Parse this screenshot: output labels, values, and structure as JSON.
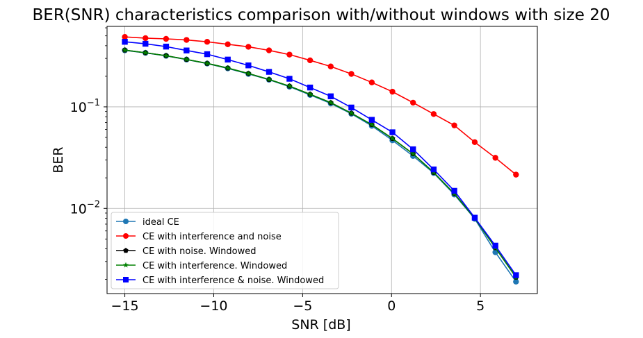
{
  "chart_data": {
    "type": "line",
    "title": "BER(SNR) characteristics comparison with/without windows with size 20",
    "xlabel": "SNR [dB]",
    "ylabel": "BER",
    "xlim": [
      -16,
      8.2
    ],
    "ylim": [
      0.00145,
      0.62
    ],
    "yscale": "log",
    "grid": true,
    "legend_position": "lower-left",
    "xticks": [
      {
        "value": -15,
        "label": "−15"
      },
      {
        "value": -10,
        "label": "−10"
      },
      {
        "value": -5,
        "label": "−5"
      },
      {
        "value": 0,
        "label": "0"
      },
      {
        "value": 5,
        "label": "5"
      }
    ],
    "yticks": [
      {
        "value": 0.1,
        "base": "10",
        "exp": "−1"
      },
      {
        "value": 0.01,
        "base": "10",
        "exp": "−2"
      }
    ],
    "x": [
      -15.0,
      -13.84,
      -12.68,
      -11.53,
      -10.37,
      -9.21,
      -8.05,
      -6.89,
      -5.74,
      -4.58,
      -3.42,
      -2.26,
      -1.11,
      0.05,
      1.21,
      2.37,
      3.53,
      4.68,
      5.84,
      7.0
    ],
    "series": [
      {
        "name": "ideal CE",
        "color": "#1f77b4",
        "marker": "circle",
        "values": [
          0.36,
          0.34,
          0.318,
          0.292,
          0.267,
          0.239,
          0.211,
          0.185,
          0.158,
          0.131,
          0.108,
          0.0855,
          0.065,
          0.0468,
          0.0328,
          0.0223,
          0.0137,
          0.0079,
          0.0037,
          0.0019
        ]
      },
      {
        "name": "CE with interference and noise",
        "color": "#ff0000",
        "marker": "circle",
        "values": [
          0.488,
          0.475,
          0.467,
          0.456,
          0.437,
          0.413,
          0.39,
          0.36,
          0.327,
          0.287,
          0.25,
          0.211,
          0.174,
          0.141,
          0.11,
          0.085,
          0.0657,
          0.0449,
          0.0315,
          0.0215
        ]
      },
      {
        "name": "CE with noise. Windowed",
        "color": "#000000",
        "marker": "pentagon",
        "values": [
          0.362,
          0.341,
          0.319,
          0.293,
          0.268,
          0.241,
          0.213,
          0.186,
          0.16,
          0.133,
          0.11,
          0.0866,
          0.0668,
          0.0488,
          0.0345,
          0.0226,
          0.014,
          0.008,
          0.0041,
          0.0021
        ]
      },
      {
        "name": "CE with interference. Windowed",
        "color": "#008000",
        "marker": "star",
        "values": [
          0.362,
          0.341,
          0.319,
          0.293,
          0.268,
          0.241,
          0.213,
          0.186,
          0.16,
          0.133,
          0.11,
          0.0866,
          0.0668,
          0.0488,
          0.0345,
          0.0226,
          0.014,
          0.008,
          0.0041,
          0.0021
        ]
      },
      {
        "name": "CE with interference & noise. Windowed",
        "color": "#0000ff",
        "marker": "square",
        "values": [
          0.437,
          0.418,
          0.392,
          0.359,
          0.33,
          0.292,
          0.256,
          0.221,
          0.189,
          0.155,
          0.127,
          0.0985,
          0.0745,
          0.0562,
          0.0382,
          0.0242,
          0.0149,
          0.0081,
          0.0043,
          0.0022
        ]
      }
    ]
  }
}
